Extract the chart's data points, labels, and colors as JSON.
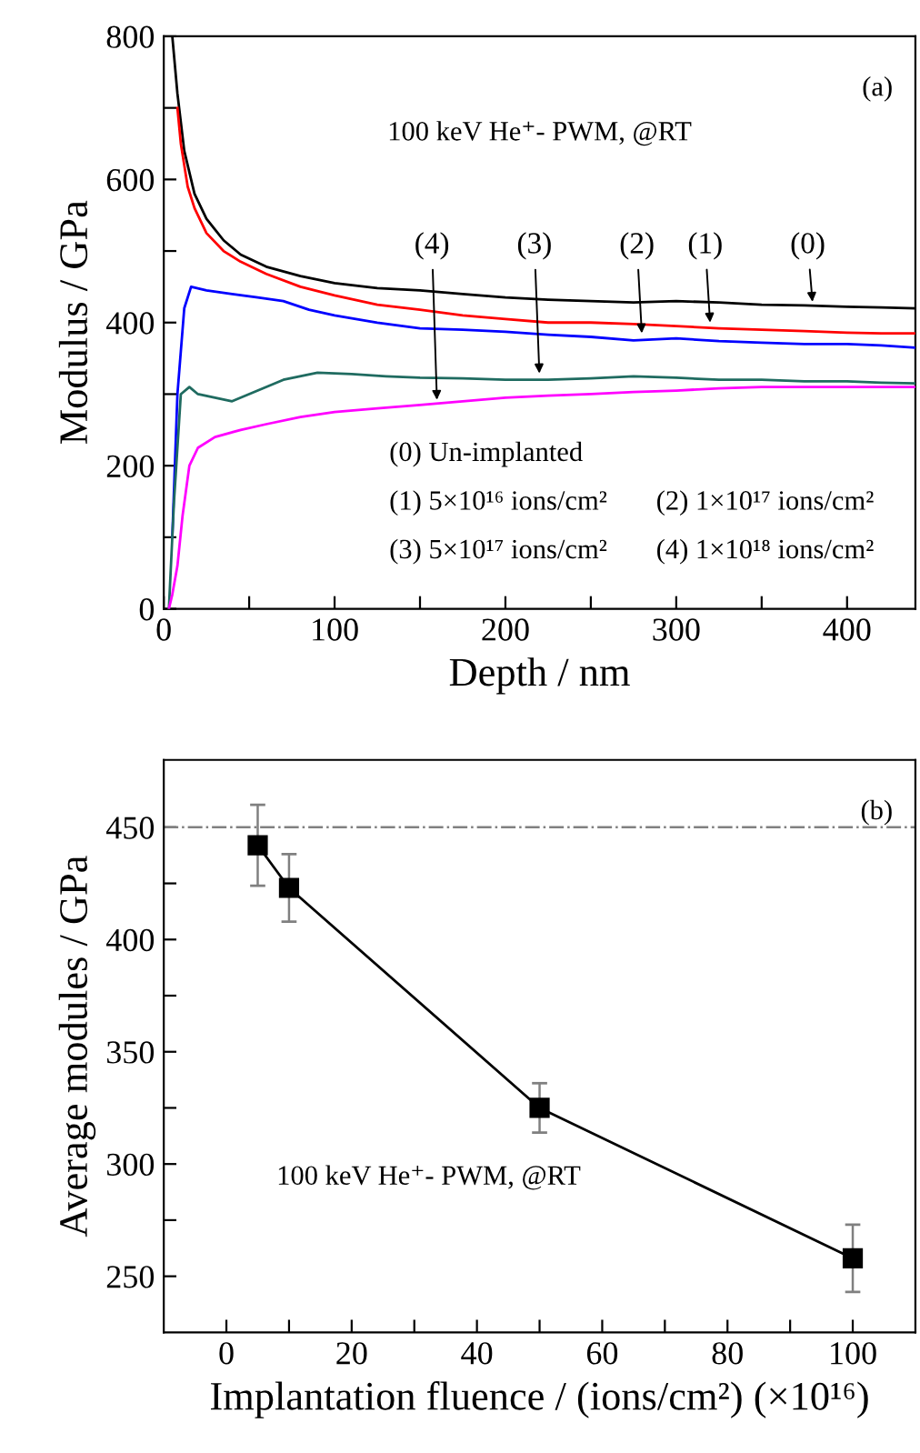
{
  "chart_data": [
    {
      "type": "line",
      "xlabel": "Depth / nm",
      "ylabel": "Modulus / GPa",
      "xlim": [
        0,
        440
      ],
      "ylim": [
        0,
        800
      ],
      "xticks": [
        0,
        {
          "value": 50,
          "label": null
        },
        100,
        {
          "value": 150,
          "label": null
        },
        200,
        {
          "value": 250,
          "label": null
        },
        300,
        {
          "value": 350,
          "label": null
        },
        400
      ],
      "yticks": [
        0,
        {
          "value": 100,
          "label": null
        },
        200,
        {
          "value": 300,
          "label": null
        },
        400,
        {
          "value": 500,
          "label": null
        },
        600,
        {
          "value": 700,
          "label": null
        },
        800
      ],
      "grid": false,
      "legend": false,
      "marker": "none",
      "line_style": "solid",
      "series": [
        {
          "color": "#000000",
          "x": [
            5,
            8,
            12,
            18,
            25,
            35,
            45,
            60,
            80,
            100,
            125,
            150,
            175,
            200,
            225,
            250,
            275,
            300,
            325,
            350,
            375,
            400,
            420,
            440
          ],
          "values": [
            800,
            720,
            640,
            580,
            545,
            515,
            495,
            478,
            465,
            455,
            448,
            445,
            440,
            435,
            432,
            430,
            428,
            430,
            428,
            425,
            424,
            422,
            421,
            420
          ]
        },
        {
          "color": "#ff0000",
          "x": [
            8,
            10,
            14,
            18,
            25,
            35,
            45,
            60,
            80,
            100,
            125,
            150,
            175,
            200,
            225,
            250,
            275,
            300,
            325,
            350,
            375,
            400,
            420,
            440
          ],
          "values": [
            700,
            650,
            590,
            560,
            525,
            500,
            485,
            468,
            450,
            438,
            425,
            418,
            410,
            405,
            400,
            400,
            398,
            395,
            392,
            390,
            388,
            386,
            385,
            385
          ]
        },
        {
          "color": "#0000ff",
          "x": [
            5,
            8,
            12,
            16,
            25,
            40,
            55,
            70,
            85,
            100,
            125,
            150,
            175,
            200,
            225,
            250,
            275,
            300,
            325,
            350,
            375,
            400,
            420,
            440
          ],
          "values": [
            100,
            300,
            420,
            450,
            445,
            440,
            435,
            430,
            418,
            410,
            400,
            392,
            390,
            387,
            383,
            380,
            375,
            378,
            374,
            372,
            370,
            370,
            368,
            365
          ]
        },
        {
          "color": "#1f6b60",
          "x": [
            3,
            6,
            10,
            15,
            20,
            30,
            40,
            55,
            70,
            90,
            110,
            130,
            150,
            175,
            200,
            225,
            250,
            275,
            300,
            325,
            350,
            375,
            400,
            420,
            440
          ],
          "values": [
            0,
            150,
            300,
            310,
            300,
            295,
            290,
            305,
            320,
            330,
            328,
            325,
            323,
            322,
            320,
            320,
            322,
            325,
            323,
            320,
            320,
            318,
            318,
            316,
            315
          ]
        },
        {
          "color": "#ff00ff",
          "x": [
            3,
            5,
            8,
            11,
            15,
            20,
            30,
            45,
            60,
            80,
            100,
            125,
            150,
            175,
            200,
            225,
            250,
            275,
            300,
            325,
            350,
            375,
            400,
            420,
            440
          ],
          "values": [
            0,
            20,
            60,
            130,
            200,
            225,
            240,
            250,
            258,
            268,
            275,
            280,
            285,
            290,
            295,
            298,
            300,
            303,
            305,
            308,
            310,
            310,
            310,
            310,
            310
          ]
        }
      ],
      "annotations": [
        "(a)",
        "100 keV He⁺- PWM, @RT",
        "(0) Un-implanted",
        "(1) 5×10¹⁶ ions/cm²",
        "(2) 1×10¹⁷ ions/cm²",
        "(3) 5×10¹⁷ ions/cm²",
        "(4) 1×10¹⁸ ions/cm²",
        {
          "text": "(4)",
          "x": 160,
          "y": 285
        },
        {
          "text": "(3)",
          "x": 220,
          "y": 322
        },
        {
          "text": "(2)",
          "x": 280,
          "y": 378
        },
        {
          "text": "(1)",
          "x": 320,
          "y": 393
        },
        {
          "text": "(0)",
          "x": 380,
          "y": 422
        }
      ]
    },
    {
      "type": "line",
      "xlabel": "Implantation fluence / (ions/cm²) (×10¹⁶)",
      "ylabel": "Average modules / GPa",
      "xlim": [
        -10,
        110
      ],
      "ylim": [
        225,
        480
      ],
      "xticks": [
        0,
        {
          "value": 10,
          "label": null
        },
        20,
        {
          "value": 30,
          "label": null
        },
        40,
        {
          "value": 50,
          "label": null
        },
        60,
        {
          "value": 70,
          "label": null
        },
        80,
        {
          "value": 90,
          "label": null
        },
        100
      ],
      "yticks": [
        250,
        {
          "value": 275,
          "label": null
        },
        300,
        {
          "value": 325,
          "label": null
        },
        350,
        {
          "value": 375,
          "label": null
        },
        400,
        {
          "value": 425,
          "label": null
        },
        450
      ],
      "grid": false,
      "legend": false,
      "marker": "square",
      "line_style": "solid",
      "x": [
        5,
        10,
        50,
        100
      ],
      "series": [
        {
          "color": "#000000",
          "values": [
            442,
            423,
            325,
            258
          ],
          "errors": [
            18,
            15,
            11,
            15
          ]
        }
      ],
      "ref_lines": [
        {
          "axis": "y",
          "value": 450,
          "color": "#808080",
          "line_style": "dashdot"
        }
      ],
      "annotations": [
        "(b)",
        "100 keV He⁺- PWM, @RT"
      ]
    }
  ]
}
